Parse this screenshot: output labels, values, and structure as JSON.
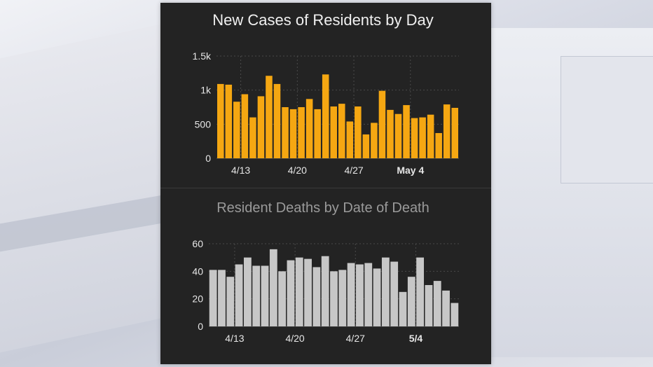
{
  "colors": {
    "panel_bg": "#232323",
    "cases_bar": "#F5A712",
    "deaths_bar": "#C7C7C7",
    "title_1": "#F0F0F0",
    "title_2": "#9A9A9A",
    "axis_text": "#E6E6E6"
  },
  "chart_data": [
    {
      "type": "bar",
      "title": "New Cases of Residents by Day",
      "xlabel": "",
      "ylabel": "",
      "ylim": [
        0,
        1500
      ],
      "y_ticks": [
        "0",
        "500",
        "1k",
        "1.5k"
      ],
      "y_tick_values": [
        0,
        500,
        1000,
        1500
      ],
      "x_tick_labels": [
        "4/13",
        "4/20",
        "4/27",
        "May 4"
      ],
      "x_tick_index": [
        3,
        10,
        17,
        24
      ],
      "grid": true,
      "values": [
        1090,
        1080,
        830,
        940,
        600,
        910,
        1210,
        1090,
        750,
        720,
        750,
        870,
        720,
        1230,
        760,
        800,
        540,
        760,
        350,
        520,
        990,
        710,
        650,
        780,
        590,
        600,
        640,
        370,
        790,
        740
      ]
    },
    {
      "type": "bar",
      "title": "Resident Deaths by Date of Death",
      "xlabel": "",
      "ylabel": "",
      "ylim": [
        0,
        60
      ],
      "y_ticks": [
        "0",
        "20",
        "40",
        "60"
      ],
      "y_tick_values": [
        0,
        20,
        40,
        60
      ],
      "x_tick_labels": [
        "4/13",
        "4/20",
        "4/27",
        "5/4"
      ],
      "x_tick_index": [
        3,
        10,
        17,
        24
      ],
      "grid": true,
      "values": [
        41,
        41,
        36,
        45,
        50,
        44,
        44,
        56,
        40,
        48,
        50,
        49,
        43,
        51,
        40,
        41,
        46,
        45,
        46,
        42,
        50,
        47,
        25,
        36,
        50,
        30,
        33,
        26,
        17
      ]
    }
  ]
}
